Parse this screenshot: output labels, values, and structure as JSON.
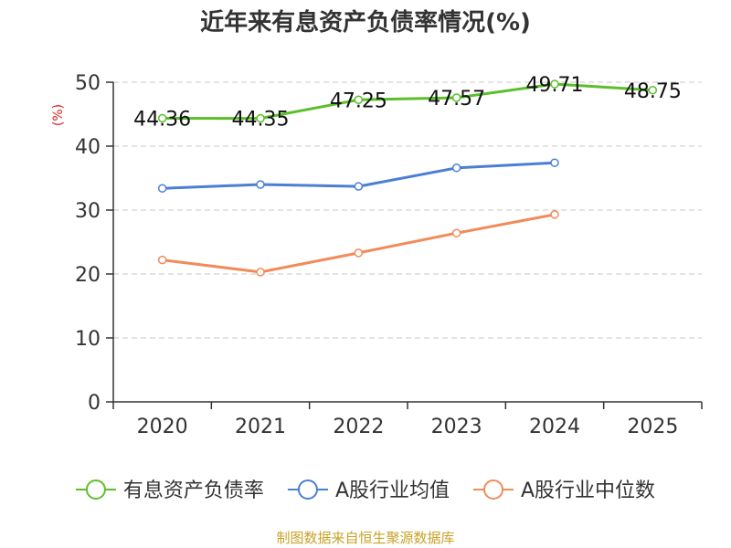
{
  "chart_data": {
    "type": "line",
    "title": "近年来有息资产负债率情况(%)",
    "ylabel": "(%)",
    "xlabel": "",
    "ylim": [
      0,
      50
    ],
    "yticks": [
      0,
      10,
      20,
      30,
      40,
      50
    ],
    "categories": [
      "2020",
      "2021",
      "2022",
      "2023",
      "2024",
      "2025"
    ],
    "grid": true,
    "legend_position": "bottom",
    "series": [
      {
        "name": "有息资产负债率",
        "color": "#5cbf2a",
        "values": [
          44.36,
          44.35,
          47.25,
          47.57,
          49.71,
          48.75
        ],
        "labels": [
          "44.36",
          "44.35",
          "47.25",
          "47.57",
          "49.71",
          "48.75"
        ]
      },
      {
        "name": "A股行业均值",
        "color": "#4a7fd4",
        "values": [
          33.4,
          34.0,
          33.7,
          36.6,
          37.4,
          null
        ]
      },
      {
        "name": "A股行业中位数",
        "color": "#f28b5a",
        "values": [
          22.2,
          20.3,
          23.3,
          26.4,
          29.3,
          null
        ]
      }
    ]
  },
  "source": "制图数据来自恒生聚源数据库"
}
